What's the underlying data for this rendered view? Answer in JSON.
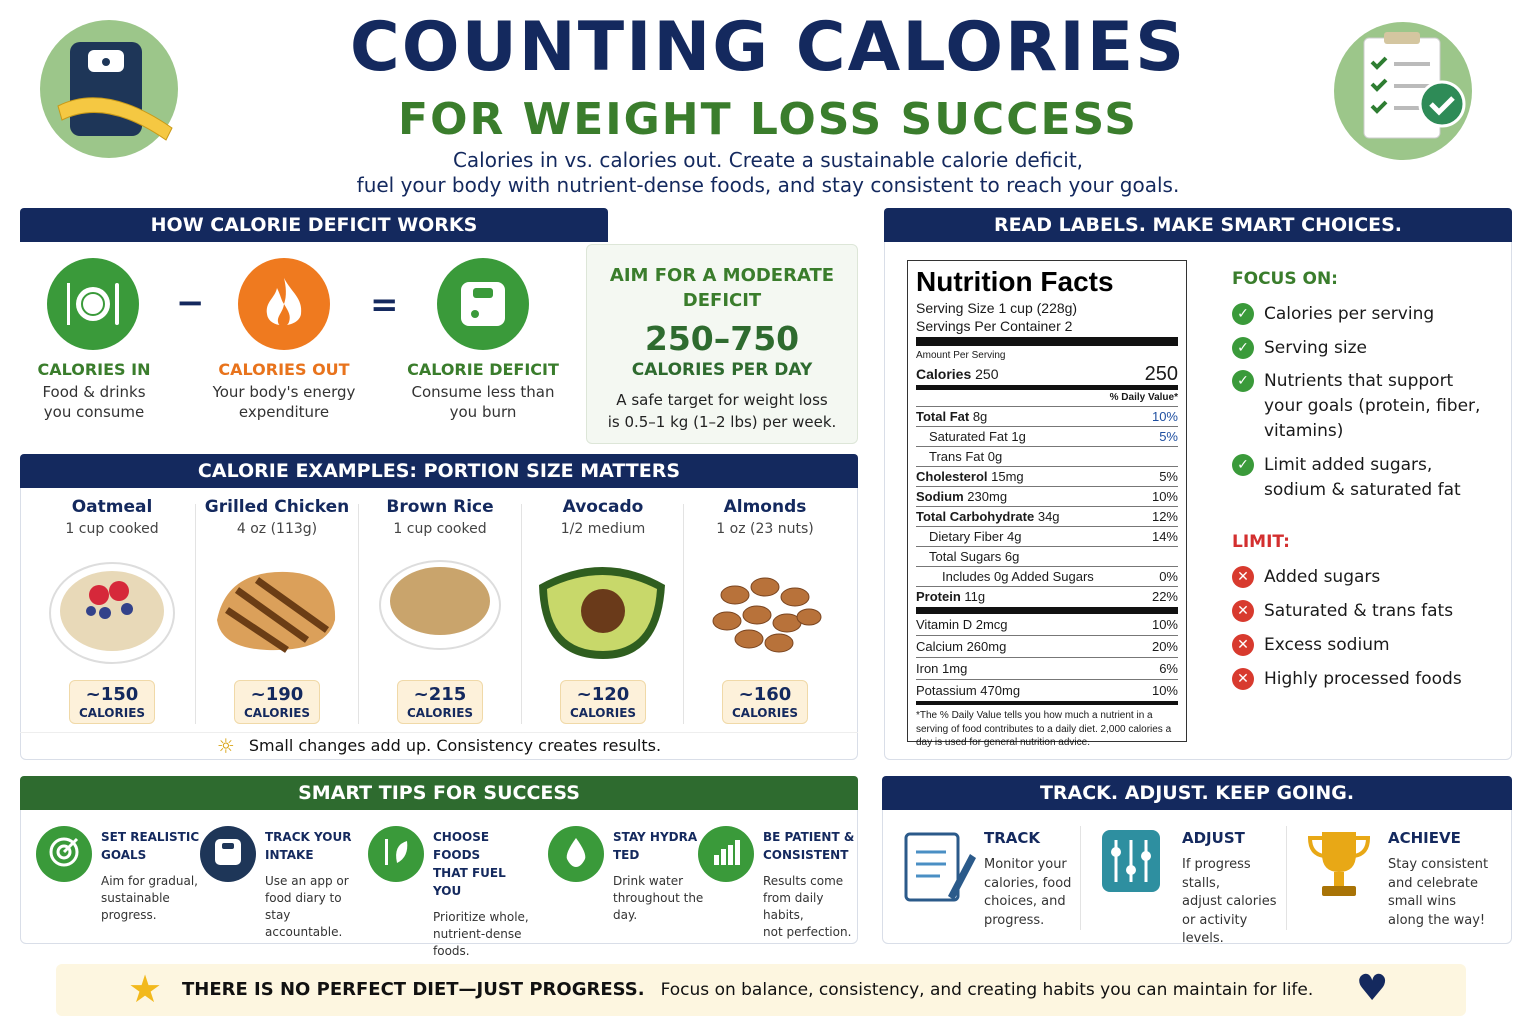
{
  "header": {
    "title": "COUNTING CALORIES",
    "subtitle": "FOR WEIGHT LOSS SUCCESS",
    "intro_line1": "Calories in vs. calories out. Create a sustainable calorie deficit,",
    "intro_line2": "fuel your body with nutrient-dense foods, and stay consistent to reach your goals."
  },
  "deficit": {
    "heading": "HOW CALORIE DEFICIT WORKS",
    "minus": "−",
    "equals": "=",
    "items": [
      {
        "label": "CALORIES IN",
        "line1": "Food & drinks",
        "line2": "you consume",
        "icon": "plate-icon"
      },
      {
        "label": "CALORIES OUT",
        "line1": "Your body's energy",
        "line2": "expenditure",
        "icon": "flame-icon"
      },
      {
        "label": "CALORIE DEFICIT",
        "line1": "Consume less than",
        "line2": "you burn",
        "icon": "scale-icon"
      }
    ],
    "aim": {
      "heading_line1": "AIM FOR A MODERATE",
      "heading_line2": "DEFICIT",
      "range": "250–750",
      "unit": "CALORIES PER DAY",
      "note_line1": "A safe target for weight loss",
      "note_line2": "is 0.5–1 kg (1–2 lbs) per week."
    }
  },
  "examples": {
    "heading": "CALORIE EXAMPLES: PORTION SIZE MATTERS",
    "cal_unit": "CALORIES",
    "foods": [
      {
        "name": "Oatmeal",
        "portion": "1 cup cooked",
        "calories": "~150"
      },
      {
        "name": "Grilled Chicken",
        "portion": "4 oz (113g)",
        "calories": "~190"
      },
      {
        "name": "Brown Rice",
        "portion": "1 cup cooked",
        "calories": "~215"
      },
      {
        "name": "Avocado",
        "portion": "1/2 medium",
        "calories": "~120"
      },
      {
        "name": "Almonds",
        "portion": "1 oz (23 nuts)",
        "calories": "~160"
      }
    ],
    "footer": "Small changes add up. Consistency creates results."
  },
  "labels": {
    "heading": "READ LABELS. MAKE SMART CHOICES.",
    "facts": {
      "title": "Nutrition Facts",
      "serving_size": "Serving Size 1 cup (228g)",
      "servings": "Servings Per Container 2",
      "amount": "Amount Per Serving",
      "calories_label": "Calories",
      "calories_unit": "250",
      "calories_value": "250",
      "dv_header": "% Daily Value*",
      "rows": [
        {
          "name": "Total Fat",
          "amt": "8g",
          "dv": "10%",
          "bold": true,
          "indent": 0,
          "blue": true
        },
        {
          "name": "Saturated Fat",
          "amt": "1g",
          "dv": "5%",
          "bold": false,
          "indent": 1,
          "blue": true
        },
        {
          "name": "Trans Fat",
          "amt": "0g",
          "dv": "",
          "bold": false,
          "indent": 1
        },
        {
          "name": "Cholesterol",
          "amt": "15mg",
          "dv": "5%",
          "bold": true,
          "indent": 0
        },
        {
          "name": "Sodium",
          "amt": "230mg",
          "dv": "10%",
          "bold": true,
          "indent": 0
        },
        {
          "name": "Total Carbohydrate",
          "amt": "34g",
          "dv": "12%",
          "bold": true,
          "indent": 0
        },
        {
          "name": "Dietary Fiber",
          "amt": "4g",
          "dv": "14%",
          "bold": false,
          "indent": 1
        },
        {
          "name": "Total Sugars",
          "amt": "6g",
          "dv": "",
          "bold": false,
          "indent": 1
        },
        {
          "name": "Includes 0g Added Sugars",
          "amt": "",
          "dv": "0%",
          "bold": false,
          "indent": 2
        },
        {
          "name": "Protein",
          "amt": "11g",
          "dv": "22%",
          "bold": true,
          "indent": 0
        }
      ],
      "vitamins": [
        {
          "name": "Vitamin D 2mcg",
          "dv": "10%"
        },
        {
          "name": "Calcium 260mg",
          "dv": "20%"
        },
        {
          "name": "Iron 1mg",
          "dv": "6%"
        },
        {
          "name": "Potassium 470mg",
          "dv": "10%"
        }
      ],
      "footnote": "*The % Daily Value tells you how much a nutrient in a serving of food contributes to a daily diet. 2,000 calories a day is used for general nutrition advice."
    },
    "focus_heading": "FOCUS ON:",
    "focus": [
      "Calories per serving",
      "Serving size",
      "Nutrients that support your goals (protein, fiber, vitamins)",
      "Limit added sugars, sodium & saturated fat"
    ],
    "limit_heading": "LIMIT:",
    "limit": [
      "Added sugars",
      "Saturated & trans fats",
      "Excess sodium",
      "Highly processed foods"
    ]
  },
  "tips": {
    "heading": "SMART TIPS FOR SUCCESS",
    "items": [
      {
        "h1": "SET REALISTIC",
        "h2": "GOALS",
        "body": [
          "Aim for gradual,",
          "sustainable",
          "progress."
        ],
        "icon": "target-icon"
      },
      {
        "h1": "TRACK YOUR",
        "h2": "INTAKE",
        "body": [
          "Use an app or",
          "food diary to",
          "stay accountable."
        ],
        "icon": "scale-icon"
      },
      {
        "h1": "CHOOSE FOODS",
        "h2": "THAT FUEL YOU",
        "body": [
          "Prioritize whole,",
          "nutrient-dense",
          "foods."
        ],
        "icon": "fork-leaf-icon"
      },
      {
        "h1": "STAY HYDRA",
        "h2": "TED",
        "body": [
          "Drink water",
          "throughout the",
          "day."
        ],
        "icon": "water-drop-icon"
      },
      {
        "h1": "BE PATIENT &",
        "h2": "CONSISTENT",
        "body": [
          "Results come",
          "from daily habits,",
          "not perfection."
        ],
        "icon": "bar-chart-icon"
      }
    ]
  },
  "track": {
    "heading": "TRACK. ADJUST. KEEP GOING.",
    "items": [
      {
        "h": "TRACK",
        "body": [
          "Monitor your",
          "calories, food",
          "choices, and",
          "progress."
        ],
        "icon": "notepad-icon"
      },
      {
        "h": "ADJUST",
        "body": [
          "If progress stalls,",
          "adjust calories",
          "or activity",
          "levels."
        ],
        "icon": "sliders-icon"
      },
      {
        "h": "ACHIEVE",
        "body": [
          "Stay consistent",
          "and celebrate",
          "small wins",
          "along the way!"
        ],
        "icon": "trophy-icon"
      }
    ]
  },
  "banner": {
    "bold": "THERE IS NO PERFECT DIET—JUST PROGRESS.",
    "rest": "Focus on balance, consistency, and creating habits you can maintain for life."
  },
  "colors": {
    "navy": "#14295e",
    "green": "#3a7d2c",
    "orange": "#e8731c",
    "red": "#d32f2f"
  }
}
